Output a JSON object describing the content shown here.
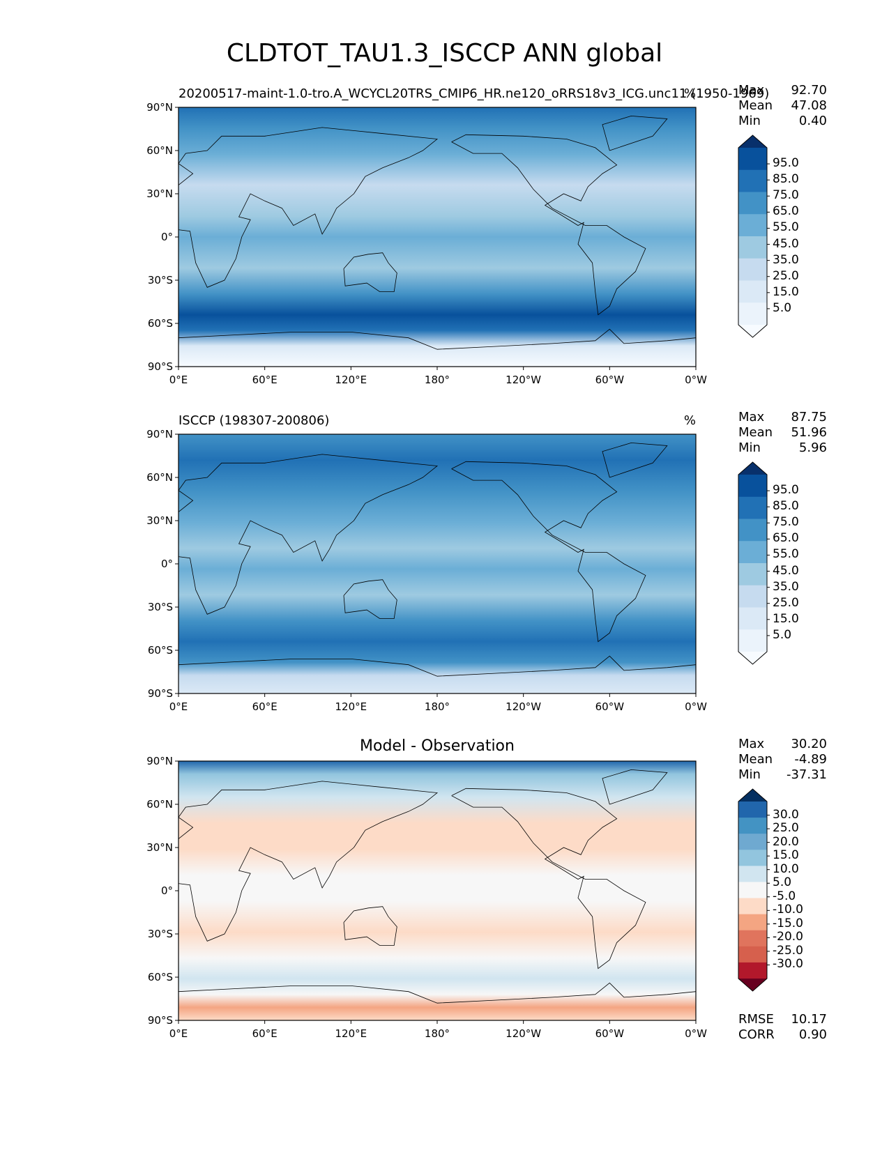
{
  "page": {
    "title": "CLDTOT_TAU1.3_ISCCP ANN global"
  },
  "panels": [
    {
      "id": "model",
      "left_title": "20200517-maint-1.0-tro.A_WCYCL20TRS_CMIP6_HR.ne120_oRRS18v3_ICG.unc11 (1950-1969)",
      "center_title": "",
      "units": "%",
      "stats": [
        {
          "label": "Max",
          "value": "92.70"
        },
        {
          "label": "Mean",
          "value": "47.08"
        },
        {
          "label": "Min",
          "value": "0.40"
        }
      ],
      "colorbar": {
        "labels": [
          "95.0",
          "85.0",
          "75.0",
          "65.0",
          "55.0",
          "45.0",
          "35.0",
          "25.0",
          "15.0",
          "5.0"
        ],
        "colors": [
          "#08306b",
          "#08519c",
          "#2171b5",
          "#4292c6",
          "#6baed6",
          "#9ecae1",
          "#c6dbef",
          "#dbe9f6",
          "#ebf3fb",
          "#f7fbff"
        ]
      },
      "extra_stats": []
    },
    {
      "id": "obs",
      "left_title": "ISCCP (198307-200806)",
      "center_title": "",
      "units": "%",
      "stats": [
        {
          "label": "Max",
          "value": "87.75"
        },
        {
          "label": "Mean",
          "value": "51.96"
        },
        {
          "label": "Min",
          "value": "5.96"
        }
      ],
      "colorbar": {
        "labels": [
          "95.0",
          "85.0",
          "75.0",
          "65.0",
          "55.0",
          "45.0",
          "35.0",
          "25.0",
          "15.0",
          "5.0"
        ],
        "colors": [
          "#08306b",
          "#08519c",
          "#2171b5",
          "#4292c6",
          "#6baed6",
          "#9ecae1",
          "#c6dbef",
          "#dbe9f6",
          "#ebf3fb",
          "#f7fbff"
        ]
      },
      "extra_stats": []
    },
    {
      "id": "diff",
      "left_title": "",
      "center_title": "Model - Observation",
      "units": "",
      "stats": [
        {
          "label": "Max",
          "value": "30.20"
        },
        {
          "label": "Mean",
          "value": "-4.89"
        },
        {
          "label": "Min",
          "value": "-37.31"
        }
      ],
      "colorbar": {
        "labels": [
          "30.0",
          "25.0",
          "20.0",
          "15.0",
          "10.0",
          "5.0",
          "-5.0",
          "-10.0",
          "-15.0",
          "-20.0",
          "-25.0",
          "-30.0"
        ],
        "colors": [
          "#053061",
          "#2166ac",
          "#4393c3",
          "#6fa9d0",
          "#92c5de",
          "#d1e5f0",
          "#f7f7f7",
          "#fddbc7",
          "#f4a582",
          "#e0745d",
          "#d6604d",
          "#b2182b",
          "#67001f"
        ]
      },
      "extra_stats": [
        {
          "label": "RMSE",
          "value": "10.17"
        },
        {
          "label": "CORR",
          "value": "0.90"
        }
      ]
    }
  ],
  "axes": {
    "x_ticks": [
      "0°E",
      "60°E",
      "120°E",
      "180°",
      "120°W",
      "60°W",
      "0°W"
    ],
    "y_ticks": [
      "90°N",
      "60°N",
      "30°N",
      "0°",
      "30°S",
      "60°S",
      "90°S"
    ]
  },
  "chart_data": [
    {
      "type": "heatmap",
      "title": "20200517-maint-1.0-tro.A_WCYCL20TRS_CMIP6_HR.ne120_oRRS18v3_ICG.unc11 (1950-1969)",
      "units": "%",
      "x_range": [
        0,
        360
      ],
      "y_range": [
        -90,
        90
      ],
      "levels": [
        5,
        15,
        25,
        35,
        45,
        55,
        65,
        75,
        85,
        95
      ],
      "stats": {
        "max": 92.7,
        "mean": 47.08,
        "min": 0.4
      }
    },
    {
      "type": "heatmap",
      "title": "ISCCP (198307-200806)",
      "units": "%",
      "x_range": [
        0,
        360
      ],
      "y_range": [
        -90,
        90
      ],
      "levels": [
        5,
        15,
        25,
        35,
        45,
        55,
        65,
        75,
        85,
        95
      ],
      "stats": {
        "max": 87.75,
        "mean": 51.96,
        "min": 5.96
      }
    },
    {
      "type": "heatmap",
      "title": "Model - Observation",
      "x_range": [
        0,
        360
      ],
      "y_range": [
        -90,
        90
      ],
      "levels": [
        -30,
        -25,
        -20,
        -15,
        -10,
        -5,
        5,
        10,
        15,
        20,
        25,
        30
      ],
      "stats": {
        "max": 30.2,
        "mean": -4.89,
        "min": -37.31,
        "rmse": 10.17,
        "corr": 0.9
      }
    }
  ]
}
